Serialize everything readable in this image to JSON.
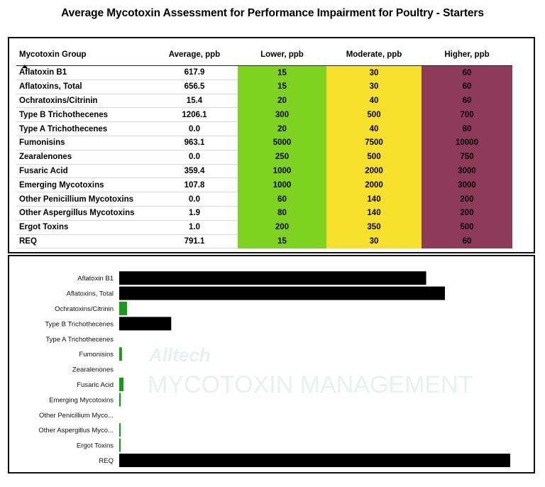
{
  "title": "Average Mycotoxin Assessment for Performance Impairment for Poultry - Starters",
  "colors": {
    "lower": "#7ed321",
    "moderate": "#f5e12c",
    "higher": "#8e3a59",
    "bar_high": "#000000",
    "bar_low": "#1a9a1a"
  },
  "table": {
    "headers": [
      "Mycotoxin Group",
      "Average, ppb",
      "Lower, ppb",
      "Moderate, ppb",
      "Higher, ppb"
    ],
    "rows": [
      {
        "name": "Aflatoxin B1",
        "avg": "617.9",
        "lower": "15",
        "moderate": "30",
        "higher": "60"
      },
      {
        "name": "Aflatoxins, Total",
        "avg": "656.5",
        "lower": "15",
        "moderate": "30",
        "higher": "60"
      },
      {
        "name": "Ochratoxins/Citrinin",
        "avg": "15.4",
        "lower": "20",
        "moderate": "40",
        "higher": "60"
      },
      {
        "name": "Type B Trichothecenes",
        "avg": "1206.1",
        "lower": "300",
        "moderate": "500",
        "higher": "700"
      },
      {
        "name": "Type A Trichothecenes",
        "avg": "0.0",
        "lower": "20",
        "moderate": "40",
        "higher": "80"
      },
      {
        "name": "Fumonisins",
        "avg": "963.1",
        "lower": "5000",
        "moderate": "7500",
        "higher": "10000"
      },
      {
        "name": "Zearalenones",
        "avg": "0.0",
        "lower": "250",
        "moderate": "500",
        "higher": "750"
      },
      {
        "name": "Fusaric Acid",
        "avg": "359.4",
        "lower": "1000",
        "moderate": "2000",
        "higher": "3000"
      },
      {
        "name": "Emerging Mycotoxins",
        "avg": "107.8",
        "lower": "1000",
        "moderate": "2000",
        "higher": "3000"
      },
      {
        "name": "Other Penicillium Mycotoxins",
        "avg": "0.0",
        "lower": "60",
        "moderate": "140",
        "higher": "200"
      },
      {
        "name": "Other Aspergillus Mycotoxins",
        "avg": "1.9",
        "lower": "80",
        "moderate": "140",
        "higher": "200"
      },
      {
        "name": "Ergot Toxins",
        "avg": "1.0",
        "lower": "200",
        "moderate": "350",
        "higher": "500"
      },
      {
        "name": "REQ",
        "avg": "791.1",
        "lower": "15",
        "moderate": "30",
        "higher": "60"
      }
    ]
  },
  "watermark": {
    "brand": "Alltech",
    "text": "MYCOTOXIN MANAGEMENT"
  },
  "chart_data": {
    "type": "bar",
    "orientation": "horizontal",
    "categories": [
      "Aflatoxin B1",
      "Aflatoxins, Total",
      "Ochratoxins/Citrinin",
      "Type B Trichothecenes",
      "Type A Trichothecenes",
      "Fumonisins",
      "Zearalenones",
      "Fusaric Acid",
      "Emerging Mycotoxins",
      "Other Penicillium Myco...",
      "Other Aspergillus Myco...",
      "Ergot Toxins",
      "REQ"
    ],
    "values": [
      0.785,
      0.833,
      0.02,
      0.133,
      0.0,
      0.007,
      0.0,
      0.011,
      0.004,
      0.0,
      0.002,
      0.001,
      1.0
    ],
    "colors": [
      "#000000",
      "#000000",
      "#1a9a1a",
      "#000000",
      "#1a9a1a",
      "#1a9a1a",
      "#1a9a1a",
      "#1a9a1a",
      "#1a9a1a",
      "#1a9a1a",
      "#1a9a1a",
      "#1a9a1a",
      "#000000"
    ],
    "xlim": [
      0,
      1.0
    ],
    "title": "",
    "xlabel": "",
    "ylabel": "",
    "grid": false,
    "legend": "none"
  }
}
